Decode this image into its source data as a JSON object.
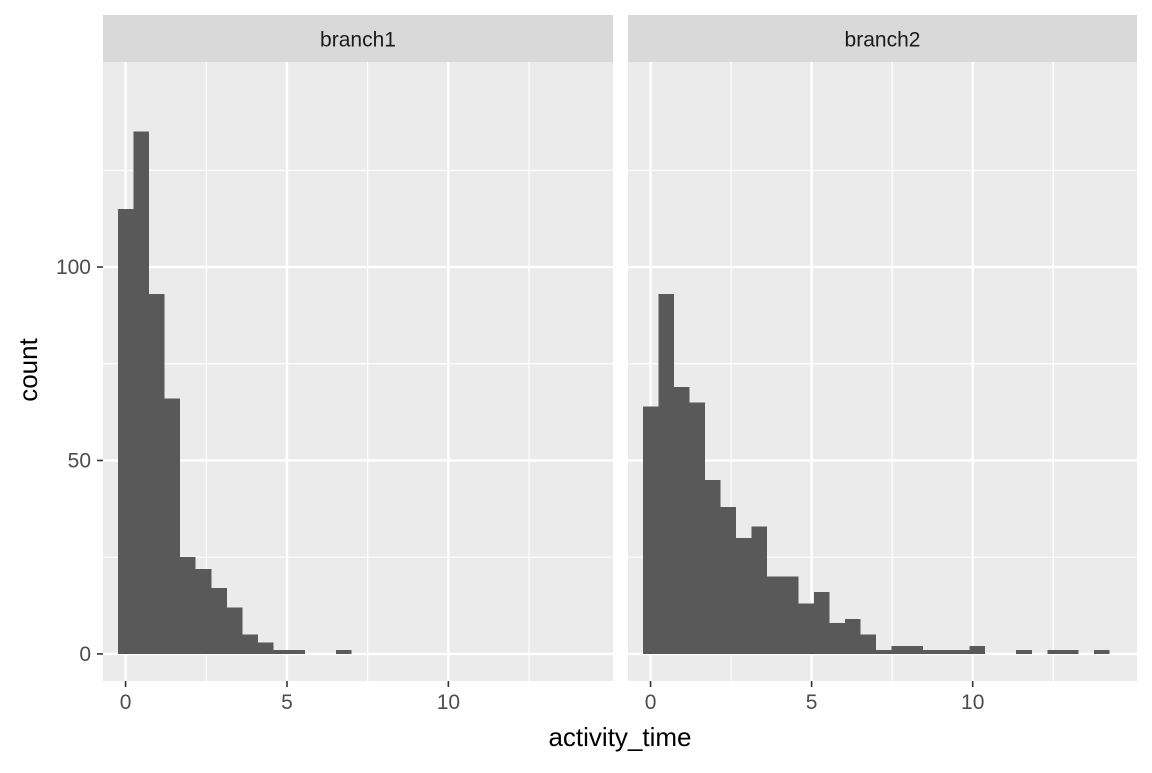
{
  "chart_data": {
    "type": "histogram",
    "xlabel": "activity_time",
    "ylabel": "count",
    "xlim": [
      -0.7,
      15.1
    ],
    "ylim": [
      -7,
      153
    ],
    "x_ticks": [
      0,
      5,
      10
    ],
    "y_ticks": [
      0,
      50,
      100
    ],
    "grid": true,
    "bar_color": "#595959",
    "panel_background": "#ebebeb",
    "strip_background": "#d9d9d9",
    "grid_color": "#ffffff",
    "bin_width": 0.483,
    "facets": [
      {
        "name": "branch1",
        "bin_start": -0.242,
        "counts": [
          115,
          135,
          93,
          66,
          25,
          22,
          17,
          12,
          5,
          3,
          1,
          1,
          0,
          0,
          1
        ]
      },
      {
        "name": "branch2",
        "bin_start": -0.242,
        "counts": [
          64,
          93,
          69,
          65,
          45,
          38,
          30,
          33,
          20,
          20,
          13,
          16,
          8,
          9,
          5,
          1,
          2,
          2,
          1,
          1,
          1,
          2,
          0,
          0,
          1,
          0,
          1,
          1,
          0,
          1
        ]
      }
    ]
  }
}
